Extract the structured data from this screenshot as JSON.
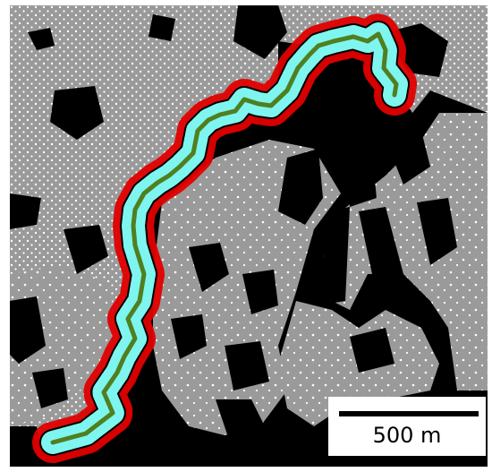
{
  "scale_bar": {
    "label": "500 m"
  },
  "colors": {
    "background": "#000000",
    "network": "#9a9a9a",
    "node": "#ffffff",
    "buffer_outer": "#e00000",
    "buffer_inner": "#7ff5f0",
    "route": "#4f7f1f"
  }
}
